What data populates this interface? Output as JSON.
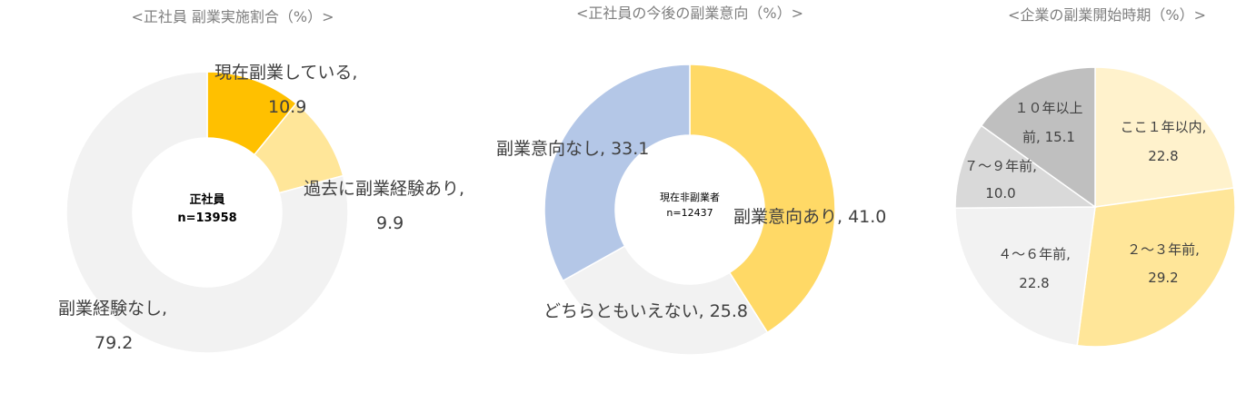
{
  "chart_data": [
    {
      "type": "pie",
      "style": "donut",
      "title": "<正社員 副業実施割合（%）>",
      "center_label": [
        "正社員",
        "n=13958"
      ],
      "slices": [
        {
          "name": "現在副業している,",
          "value": 10.9,
          "value_label": "10.9",
          "color": "#ffc000"
        },
        {
          "name": "過去に副業経験あり,",
          "value": 9.9,
          "value_label": "9.9",
          "color": "#ffe699"
        },
        {
          "name": "副業経験なし,",
          "value": 79.2,
          "value_label": "79.2",
          "color": "#f2f2f2"
        }
      ]
    },
    {
      "type": "pie",
      "style": "donut",
      "title": "<正社員の今後の副業意向（%）>",
      "center_label": [
        "現在非副業者",
        "n=12437"
      ],
      "slices": [
        {
          "name": "副業意向あり, 41.0",
          "value": 41.0,
          "color": "#ffd966"
        },
        {
          "name": "どちらともいえない, 25.8",
          "value": 25.8,
          "color": "#f2f2f2"
        },
        {
          "name": "副業意向なし, 33.1",
          "value": 33.1,
          "color": "#b4c7e7"
        }
      ]
    },
    {
      "type": "pie",
      "title": "<企業の副業開始時期（%）>",
      "slices": [
        {
          "name": "ここ１年以内,",
          "value": 22.8,
          "value_label": "22.8",
          "color": "#fff2cc"
        },
        {
          "name": "２～３年前,",
          "value": 29.2,
          "value_label": "29.2",
          "color": "#ffe699"
        },
        {
          "name": "４～６年前,",
          "value": 22.8,
          "value_label": "22.8",
          "color": "#f2f2f2"
        },
        {
          "name": "７～９年前,",
          "value": 10.0,
          "value_label": "10.0",
          "color": "#d9d9d9"
        },
        {
          "name": "１０年以上",
          "name2": "前, 15.1",
          "value": 15.1,
          "color": "#bfbfbf"
        }
      ]
    }
  ]
}
